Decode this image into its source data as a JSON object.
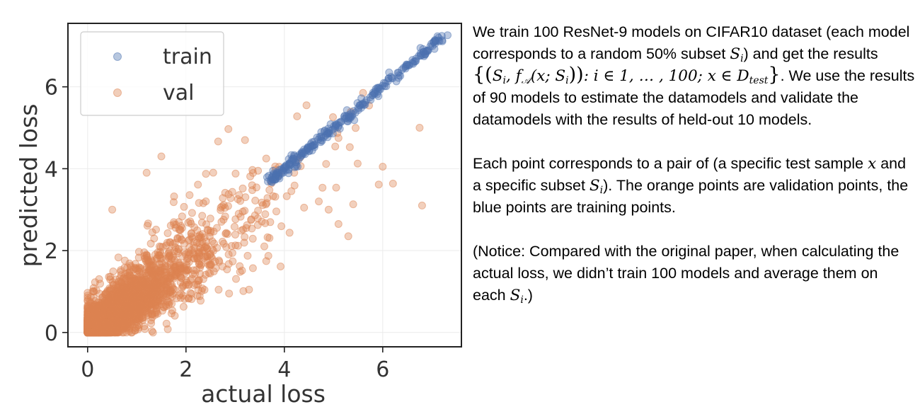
{
  "chart_data": {
    "type": "scatter",
    "xlabel": "actual loss",
    "ylabel": "predicted loss",
    "xlim": [
      -0.4,
      7.6
    ],
    "ylim": [
      -0.35,
      7.55
    ],
    "xticks": [
      0,
      2,
      4,
      6
    ],
    "yticks": [
      0,
      2,
      4,
      6
    ],
    "grid": true,
    "legend": {
      "placement": "top-left",
      "entries": [
        "train",
        "val"
      ]
    },
    "series": [
      {
        "name": "train",
        "color": "#4c72b0",
        "alpha": 0.4,
        "description_range": {
          "x": [
            0,
            7.25
          ],
          "y": [
            0,
            7.25
          ]
        }
      },
      {
        "name": "val",
        "color": "#dd8452",
        "alpha": 0.4,
        "description_range": {
          "x": [
            0,
            6.8
          ],
          "y": [
            0,
            5.9
          ]
        }
      }
    ],
    "outliers_val": [
      [
        4.45,
        5.55
      ],
      [
        5.1,
        4.75
      ],
      [
        6.0,
        4.05
      ],
      [
        6.8,
        3.1
      ],
      [
        6.75,
        5.0
      ],
      [
        5.3,
        2.35
      ],
      [
        5.1,
        2.65
      ],
      [
        3.2,
        4.7
      ],
      [
        1.5,
        4.3
      ],
      [
        1.2,
        3.9
      ],
      [
        4.7,
        3.2
      ],
      [
        4.9,
        3.0
      ],
      [
        0.5,
        3.0
      ],
      [
        5.6,
        5.85
      ],
      [
        4.2,
        3.9
      ]
    ]
  },
  "notes": {
    "p1_a": "We train 100 ResNet-9 models on CIFAR10 dataset (each model corresponds to a random 50% subset ",
    "p1_b": ") and get the results ",
    "p1_c": ". We use the results of 90 models to estimate the datamodels and validate the datamodels with the results of held-out 10 models.",
    "p2_a": "Each point corresponds to a pair of (a specific test sample ",
    "p2_b": " and a specific subset ",
    "p2_c": "). The orange points are validation points, the blue points are training points.",
    "p3_a": "(Notice: Compared with the original paper, when calculating the actual loss, we didn’t train 100 models and average them on each ",
    "p3_b": ".)",
    "m_Si": "S",
    "m_i": "i",
    "m_x": "x",
    "m_set_open": "{(",
    "m_f": "f",
    "m_A": "𝒜",
    "m_args": "(x; S",
    "m_close": "))",
    "m_colon": ": i ∈ 1, … , 100; x ∈ D",
    "m_test": "test",
    "m_end": "}"
  }
}
